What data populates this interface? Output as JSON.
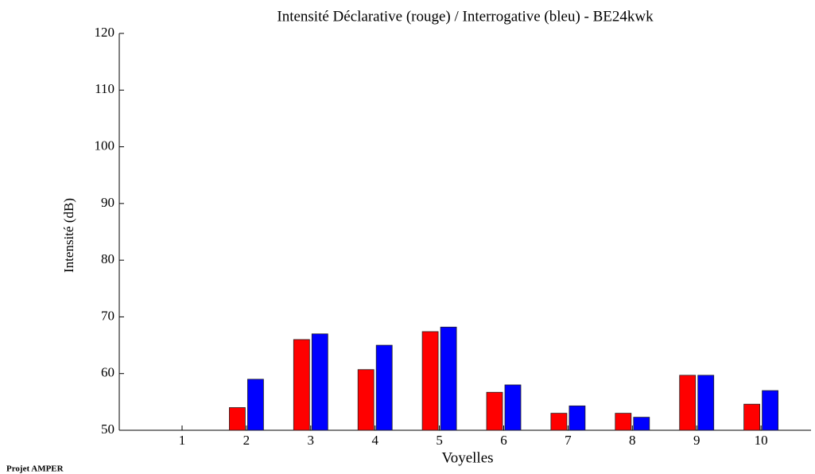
{
  "chart_data": {
    "type": "bar",
    "title": "Intensité Déclarative (rouge) / Interrogative (bleu) - BE24kwk",
    "x_label": "Voyelles",
    "y_label": "Intensité (dB)",
    "footer": "Projet AMPER",
    "categories": [
      "1",
      "2",
      "3",
      "4",
      "5",
      "6",
      "7",
      "8",
      "9",
      "10"
    ],
    "series": [
      {
        "color": "#ff0000",
        "values": [
          null,
          54.0,
          66.0,
          60.7,
          67.4,
          56.7,
          53.0,
          53.0,
          59.7,
          54.6
        ]
      },
      {
        "color": "#0000ff",
        "values": [
          null,
          59.0,
          67.0,
          65.0,
          68.2,
          58.0,
          54.3,
          52.3,
          59.7,
          57.0
        ]
      }
    ],
    "ylim": [
      50,
      120
    ],
    "yticks": [
      50,
      60,
      70,
      80,
      90,
      100,
      110,
      120
    ],
    "grid": false
  }
}
